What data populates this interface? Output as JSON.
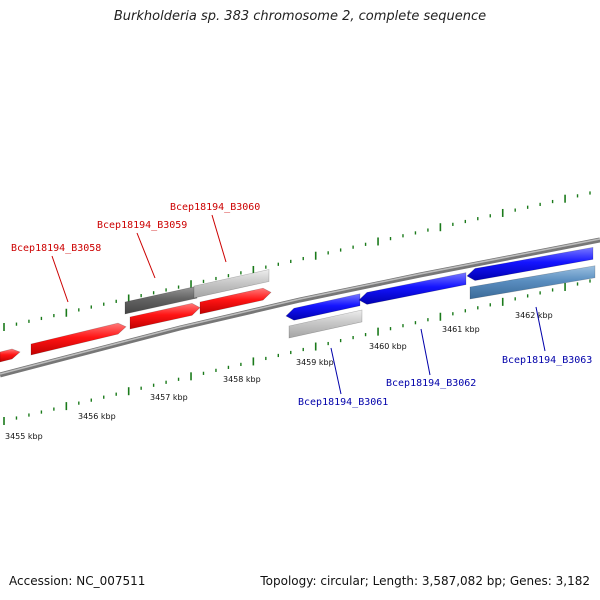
{
  "header": {
    "title": "Burkholderia sp. 383 chromosome 2, complete sequence"
  },
  "footer": {
    "accession": "Accession: NC_007511",
    "summary": "Topology: circular; Length: 3,587,082 bp; Genes: 3,182"
  },
  "colors": {
    "forward": "#ff0000",
    "reverse": "#0000ff",
    "forward_label": "#cc0000",
    "reverse_label": "#0000aa",
    "tick": "#1a7a1a",
    "backbone": "#888888"
  },
  "chart_data": {
    "type": "linear-genome-map",
    "scale_labels": [
      "3455 kbp",
      "3456 kbp",
      "3457 kbp",
      "3458 kbp",
      "3459 kbp",
      "3460 kbp",
      "3461 kbp",
      "3462 kbp"
    ],
    "genes": [
      {
        "label": "",
        "strand": "+",
        "color": "red"
      },
      {
        "label": "Bcep18194_B3058",
        "strand": "+",
        "color": "red"
      },
      {
        "label": "Bcep18194_B3059",
        "strand": "+",
        "color": "red"
      },
      {
        "label": "Bcep18194_B3060",
        "strand": "+",
        "color": "red"
      },
      {
        "label": "Bcep18194_B3061",
        "strand": "-",
        "color": "blue"
      },
      {
        "label": "Bcep18194_B3062",
        "strand": "-",
        "color": "blue"
      },
      {
        "label": "Bcep18194_B3063",
        "strand": "-",
        "color": "blue"
      }
    ]
  }
}
